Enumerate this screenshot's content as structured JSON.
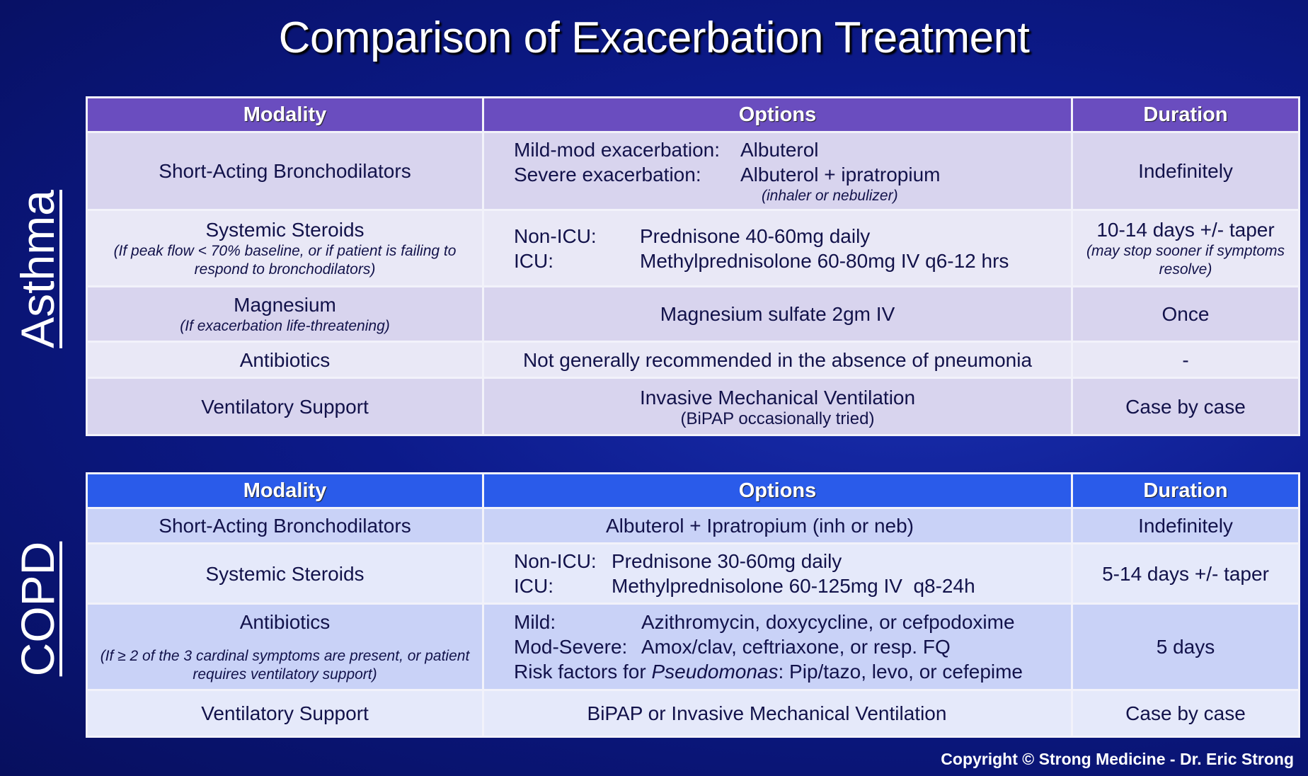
{
  "title": "Comparison of Exacerbation Treatment",
  "copyright": "Copyright © Strong Medicine - Dr. Eric Strong",
  "colors": {
    "asthma_header": "#6a4dbf",
    "copd_header": "#2a5bea",
    "background": "#0c1a8a"
  },
  "headers": {
    "modality": "Modality",
    "options": "Options",
    "duration": "Duration"
  },
  "asthma": {
    "label": "Asthma",
    "rows": [
      {
        "modality": "Short-Acting Bronchodilators",
        "options": [
          {
            "k": "Mild-mod exacerbation:",
            "v": "Albuterol"
          },
          {
            "k": "Severe exacerbation:",
            "v": "Albuterol + ipratropium"
          }
        ],
        "options_note": "(inhaler or nebulizer)",
        "duration": "Indefinitely"
      },
      {
        "modality": "Systemic Steroids",
        "modality_note": "(If peak flow < 70% baseline, or if patient is failing to respond to bronchodilators)",
        "options": [
          {
            "k": "Non-ICU:",
            "v": "Prednisone 40-60mg daily"
          },
          {
            "k": "ICU:",
            "v": "Methylprednisolone 60-80mg IV q6-12 hrs"
          }
        ],
        "duration": "10-14 days +/- taper",
        "duration_note": "(may stop sooner if symptoms resolve)"
      },
      {
        "modality": "Magnesium",
        "modality_note": "(If exacerbation life-threatening)",
        "options": "Magnesium sulfate 2gm IV",
        "duration": "Once"
      },
      {
        "modality": "Antibiotics",
        "options": "Not generally recommended in the absence of pneumonia",
        "duration": "-"
      },
      {
        "modality": "Ventilatory Support",
        "options": "Invasive Mechanical Ventilation",
        "options_note": "(BiPAP occasionally tried)",
        "duration": "Case by case"
      }
    ]
  },
  "copd": {
    "label": "COPD",
    "rows": [
      {
        "modality": "Short-Acting Bronchodilators",
        "options": "Albuterol + Ipratropium (inh or neb)",
        "duration": "Indefinitely"
      },
      {
        "modality": "Systemic Steroids",
        "options": [
          {
            "k": "Non-ICU:",
            "v": "Prednisone 30-60mg daily"
          },
          {
            "k": "ICU:",
            "v": "Methylprednisolone 60-125mg IV  q8-24h"
          }
        ],
        "duration": "5-14 days +/- taper"
      },
      {
        "modality": "Antibiotics",
        "modality_note": "(If ≥ 2 of the 3 cardinal symptoms are present, or patient requires ventilatory support)",
        "options": [
          {
            "k": "Mild:",
            "v": "Azithromycin, doxycycline, or cefpodoxime"
          },
          {
            "k": "Mod-Severe:",
            "v": "Amox/clav, ceftriaxone, or resp. FQ"
          }
        ],
        "options_risk": {
          "prefix": "Risk factors for ",
          "organism": "Pseudomonas",
          "suffix": ": Pip/tazo, levo, or cefepime"
        },
        "duration": "5 days"
      },
      {
        "modality": "Ventilatory Support",
        "options": "BiPAP or Invasive Mechanical Ventilation",
        "duration": "Case by case"
      }
    ]
  }
}
